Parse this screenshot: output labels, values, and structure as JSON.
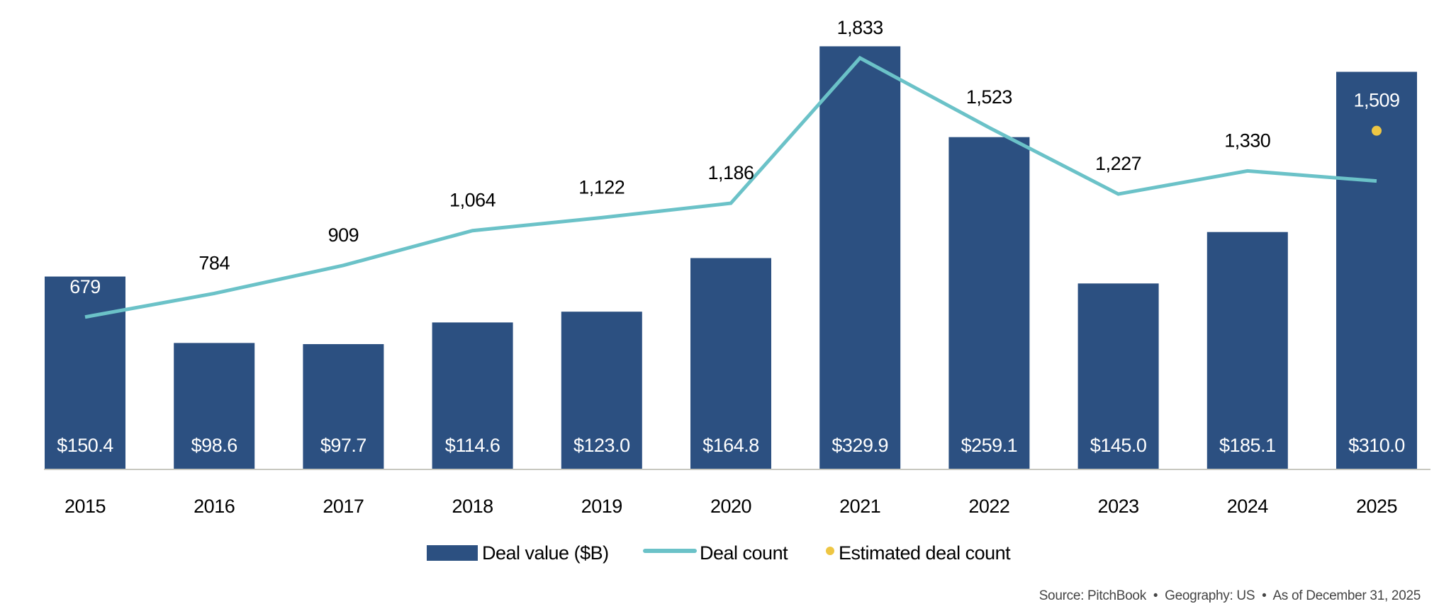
{
  "chart_data": {
    "type": "bar",
    "categories": [
      "2015",
      "2016",
      "2017",
      "2018",
      "2019",
      "2020",
      "2021",
      "2022",
      "2023",
      "2024",
      "2025"
    ],
    "series": [
      {
        "name": "Deal value ($B)",
        "kind": "bar",
        "axis": "left",
        "values": [
          150.4,
          98.6,
          97.7,
          114.6,
          123.0,
          164.8,
          329.9,
          259.1,
          145.0,
          185.1,
          310.0
        ],
        "labels": [
          "$150.4",
          "$98.6",
          "$97.7",
          "$114.6",
          "$123.0",
          "$164.8",
          "$329.9",
          "$259.1",
          "$145.0",
          "$185.1",
          "$310.0"
        ]
      },
      {
        "name": "Deal count",
        "kind": "line",
        "axis": "right",
        "values": [
          679,
          784,
          909,
          1064,
          1122,
          1186,
          1833,
          1523,
          1227,
          1330,
          1285
        ],
        "labels": [
          "679",
          "784",
          "909",
          "1,064",
          "1,122",
          "1,186",
          "1,833",
          "1,523",
          "1,227",
          "1,330",
          ""
        ]
      },
      {
        "name": "Estimated deal count",
        "kind": "point",
        "axis": "right",
        "category": "2025",
        "value": 1509,
        "label": "1,509"
      }
    ],
    "ylim_left": [
      0,
      350
    ],
    "ylim_right": [
      0,
      2000
    ],
    "grid": false,
    "legend": "bottom-center",
    "colors": {
      "bar": "#2C5081",
      "line": "#6BC2C8",
      "estimate": "#EEC643",
      "axis": "#C8C8C0"
    },
    "source": "Source: PitchBook  •  Geography: US  •  As of December 31, 2025"
  }
}
